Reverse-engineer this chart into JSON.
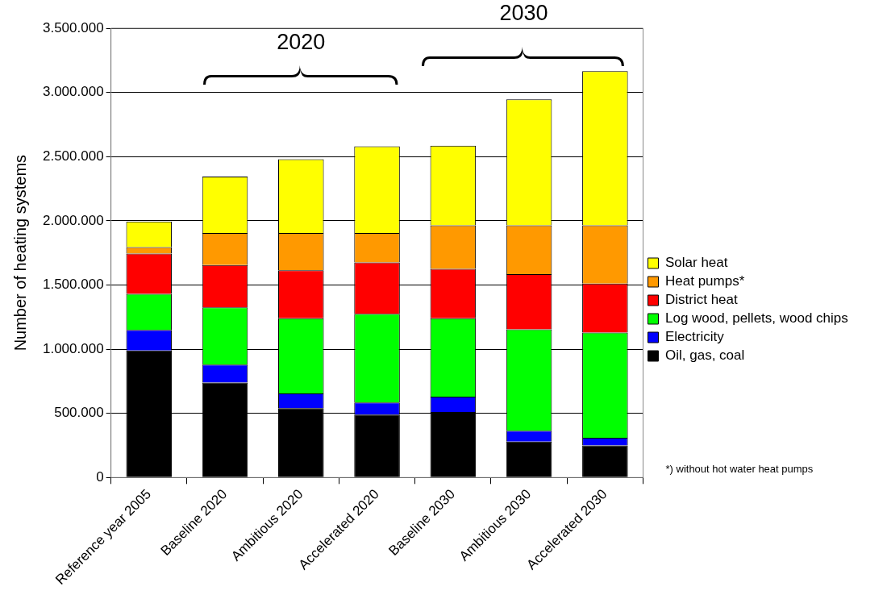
{
  "chart_data": {
    "type": "bar",
    "stacked": true,
    "ylabel": "Number of heating systems",
    "categories": [
      "Reference year 2005",
      "Baseline 2020",
      "Ambitious 2020",
      "Accelerated 2020",
      "Baseline 2030",
      "Ambitious 2030",
      "Accelerated 2030"
    ],
    "series": [
      {
        "name": "Oil, gas, coal",
        "color": "#000000",
        "values": [
          990000,
          740000,
          540000,
          490000,
          510000,
          280000,
          250000
        ]
      },
      {
        "name": "Electricity",
        "color": "#0000ff",
        "values": [
          160000,
          140000,
          115000,
          95000,
          120000,
          85000,
          60000
        ]
      },
      {
        "name": "Log wood, pellets, wood chips",
        "color": "#00ff00",
        "values": [
          280000,
          445000,
          585000,
          690000,
          610000,
          790000,
          820000
        ]
      },
      {
        "name": "District heat",
        "color": "#ff0000",
        "values": [
          315000,
          330000,
          375000,
          400000,
          385000,
          430000,
          380000
        ]
      },
      {
        "name": "Heat pumps*",
        "color": "#ff9900",
        "values": [
          50000,
          250000,
          290000,
          230000,
          340000,
          380000,
          455000
        ]
      },
      {
        "name": "Solar heat",
        "color": "#ffff00",
        "values": [
          200000,
          440000,
          575000,
          675000,
          620000,
          980000,
          1200000
        ]
      }
    ],
    "ylim": [
      0,
      3500000
    ],
    "yticks": [
      0,
      {
        "value": 500000,
        "label": "500.000"
      },
      {
        "value": 1000000,
        "label": "1.000.000"
      },
      {
        "value": 1500000,
        "label": "1.500.000"
      },
      {
        "value": 2000000,
        "label": "2.000.000"
      },
      {
        "value": 2500000,
        "label": "2.500.000"
      },
      {
        "value": 3000000,
        "label": "3.000.000"
      },
      {
        "value": 3500000,
        "label": "3.500.000"
      }
    ],
    "grid": "y",
    "legend": "right",
    "annotations": [
      "2020",
      "2030",
      "*) without hot water heat pumps"
    ]
  }
}
